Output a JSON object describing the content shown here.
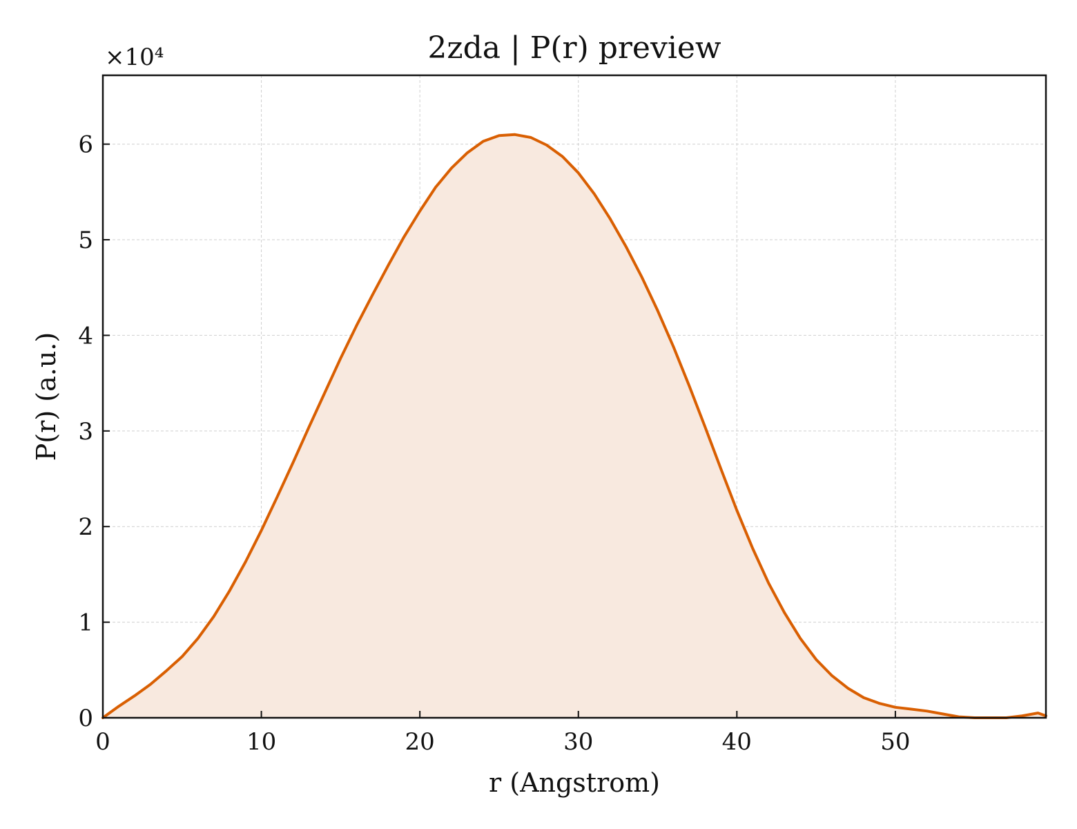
{
  "chart_data": {
    "type": "area",
    "title": "2zda | P(r) preview",
    "xlabel": "r (Angstrom)",
    "ylabel": "P(r) (a.u.)",
    "y_multiplier_label": "×10⁴",
    "y_scale_factor": 10000,
    "xlim": [
      0,
      59.5
    ],
    "ylim": [
      0,
      67200
    ],
    "x_ticks": [
      0,
      10,
      20,
      30,
      40,
      50
    ],
    "x_tick_labels": [
      "0",
      "10",
      "20",
      "30",
      "40",
      "50"
    ],
    "y_ticks": [
      0,
      10000,
      20000,
      30000,
      40000,
      50000,
      60000
    ],
    "y_tick_labels": [
      "0",
      "1",
      "2",
      "3",
      "4",
      "5",
      "6"
    ],
    "grid": true,
    "line_color": "#d95f02",
    "fill_color": "#f8e9df",
    "series": [
      {
        "x": [
          0,
          1,
          2,
          3,
          4,
          5,
          6,
          7,
          8,
          9,
          10,
          11,
          12,
          13,
          14,
          15,
          16,
          17,
          18,
          19,
          20,
          21,
          22,
          23,
          24,
          25,
          26,
          27,
          28,
          29,
          30,
          31,
          32,
          33,
          34,
          35,
          36,
          37,
          38,
          39,
          40,
          41,
          42,
          43,
          44,
          45,
          46,
          47,
          48,
          49,
          50,
          51,
          52,
          53,
          54,
          55,
          56,
          57,
          58,
          59,
          59.5
        ],
        "y": [
          0,
          1200,
          2300,
          3500,
          4900,
          6400,
          8300,
          10600,
          13300,
          16300,
          19600,
          23100,
          26700,
          30400,
          34000,
          37600,
          41000,
          44200,
          47300,
          50300,
          53000,
          55500,
          57500,
          59100,
          60300,
          60900,
          61000,
          60700,
          59900,
          58700,
          57000,
          54800,
          52200,
          49300,
          46100,
          42600,
          38800,
          34700,
          30400,
          26000,
          21700,
          17700,
          14100,
          11000,
          8300,
          6100,
          4400,
          3100,
          2100,
          1500,
          1100,
          900,
          700,
          400,
          100,
          -100,
          -200,
          0,
          200,
          500,
          200
        ]
      }
    ]
  }
}
